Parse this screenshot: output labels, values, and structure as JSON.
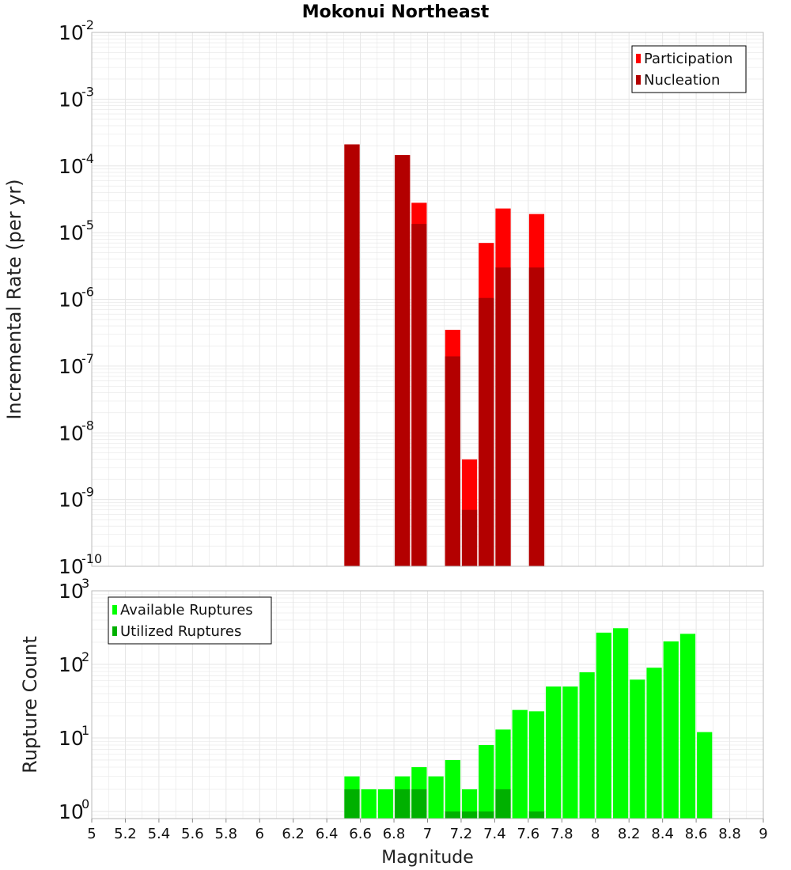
{
  "title": "Mokonui Northeast",
  "xlabel": "Magnitude",
  "colors": {
    "participation": "#ff0000",
    "nucleation": "#b30000",
    "available": "#00ff00",
    "utilized": "#00b000",
    "grid": "#e6e6e6",
    "axis": "#bbbbbb"
  },
  "chart_data": [
    {
      "type": "bar",
      "panel": "rate",
      "ylabel": "Incremental Rate (per yr)",
      "yscale": "log",
      "ylim": [
        1e-10,
        0.01
      ],
      "xlim": [
        5,
        9
      ],
      "bin_width": 0.1,
      "legend_placement": "top-right",
      "y_tick_base": "10",
      "y_tick_exponents": [
        "-10",
        "-9",
        "-8",
        "-7",
        "-6",
        "-5",
        "-4",
        "-3",
        "-2"
      ],
      "series": [
        {
          "name": "Participation",
          "x": [
            6.55,
            6.85,
            6.95,
            7.15,
            7.25,
            7.35,
            7.45,
            7.65
          ],
          "values": [
            0.00021,
            0.000145,
            2.8e-05,
            3.5e-07,
            4e-09,
            7e-06,
            2.3e-05,
            1.9e-05
          ]
        },
        {
          "name": "Nucleation",
          "x": [
            6.55,
            6.85,
            6.95,
            7.15,
            7.25,
            7.35,
            7.45,
            7.65
          ],
          "values": [
            0.00021,
            0.000145,
            1.35e-05,
            1.4e-07,
            7e-10,
            1.05e-06,
            3e-06,
            3e-06
          ]
        }
      ]
    },
    {
      "type": "bar",
      "panel": "count",
      "ylabel": "Rupture Count",
      "xlabel": "Magnitude",
      "yscale": "log",
      "ylim": [
        0.8,
        1000
      ],
      "xlim": [
        5,
        9
      ],
      "bin_width": 0.1,
      "legend_placement": "top-left",
      "y_tick_base": "10",
      "y_tick_exponents": [
        "0",
        "1",
        "2",
        "3"
      ],
      "x_ticks": [
        "5",
        "5.2",
        "5.4",
        "5.6",
        "5.8",
        "6",
        "6.2",
        "6.4",
        "6.6",
        "6.8",
        "7",
        "7.2",
        "7.4",
        "7.6",
        "7.8",
        "8",
        "8.2",
        "8.4",
        "8.6",
        "8.8",
        "9"
      ],
      "series": [
        {
          "name": "Available Ruptures",
          "x": [
            6.55,
            6.65,
            6.75,
            6.85,
            6.95,
            7.05,
            7.15,
            7.25,
            7.35,
            7.45,
            7.55,
            7.65,
            7.75,
            7.85,
            7.95,
            8.05,
            8.15,
            8.25,
            8.35,
            8.45,
            8.55,
            8.65
          ],
          "values": [
            3,
            2,
            2,
            3,
            4,
            3,
            5,
            2,
            8,
            13,
            24,
            23,
            50,
            50,
            78,
            270,
            310,
            62,
            90,
            205,
            260,
            12
          ]
        },
        {
          "name": "Utilized Ruptures",
          "x": [
            6.55,
            6.85,
            6.95,
            7.15,
            7.25,
            7.35,
            7.45,
            7.65
          ],
          "values": [
            2,
            2,
            2,
            1,
            1,
            1,
            2,
            1
          ]
        }
      ]
    }
  ]
}
